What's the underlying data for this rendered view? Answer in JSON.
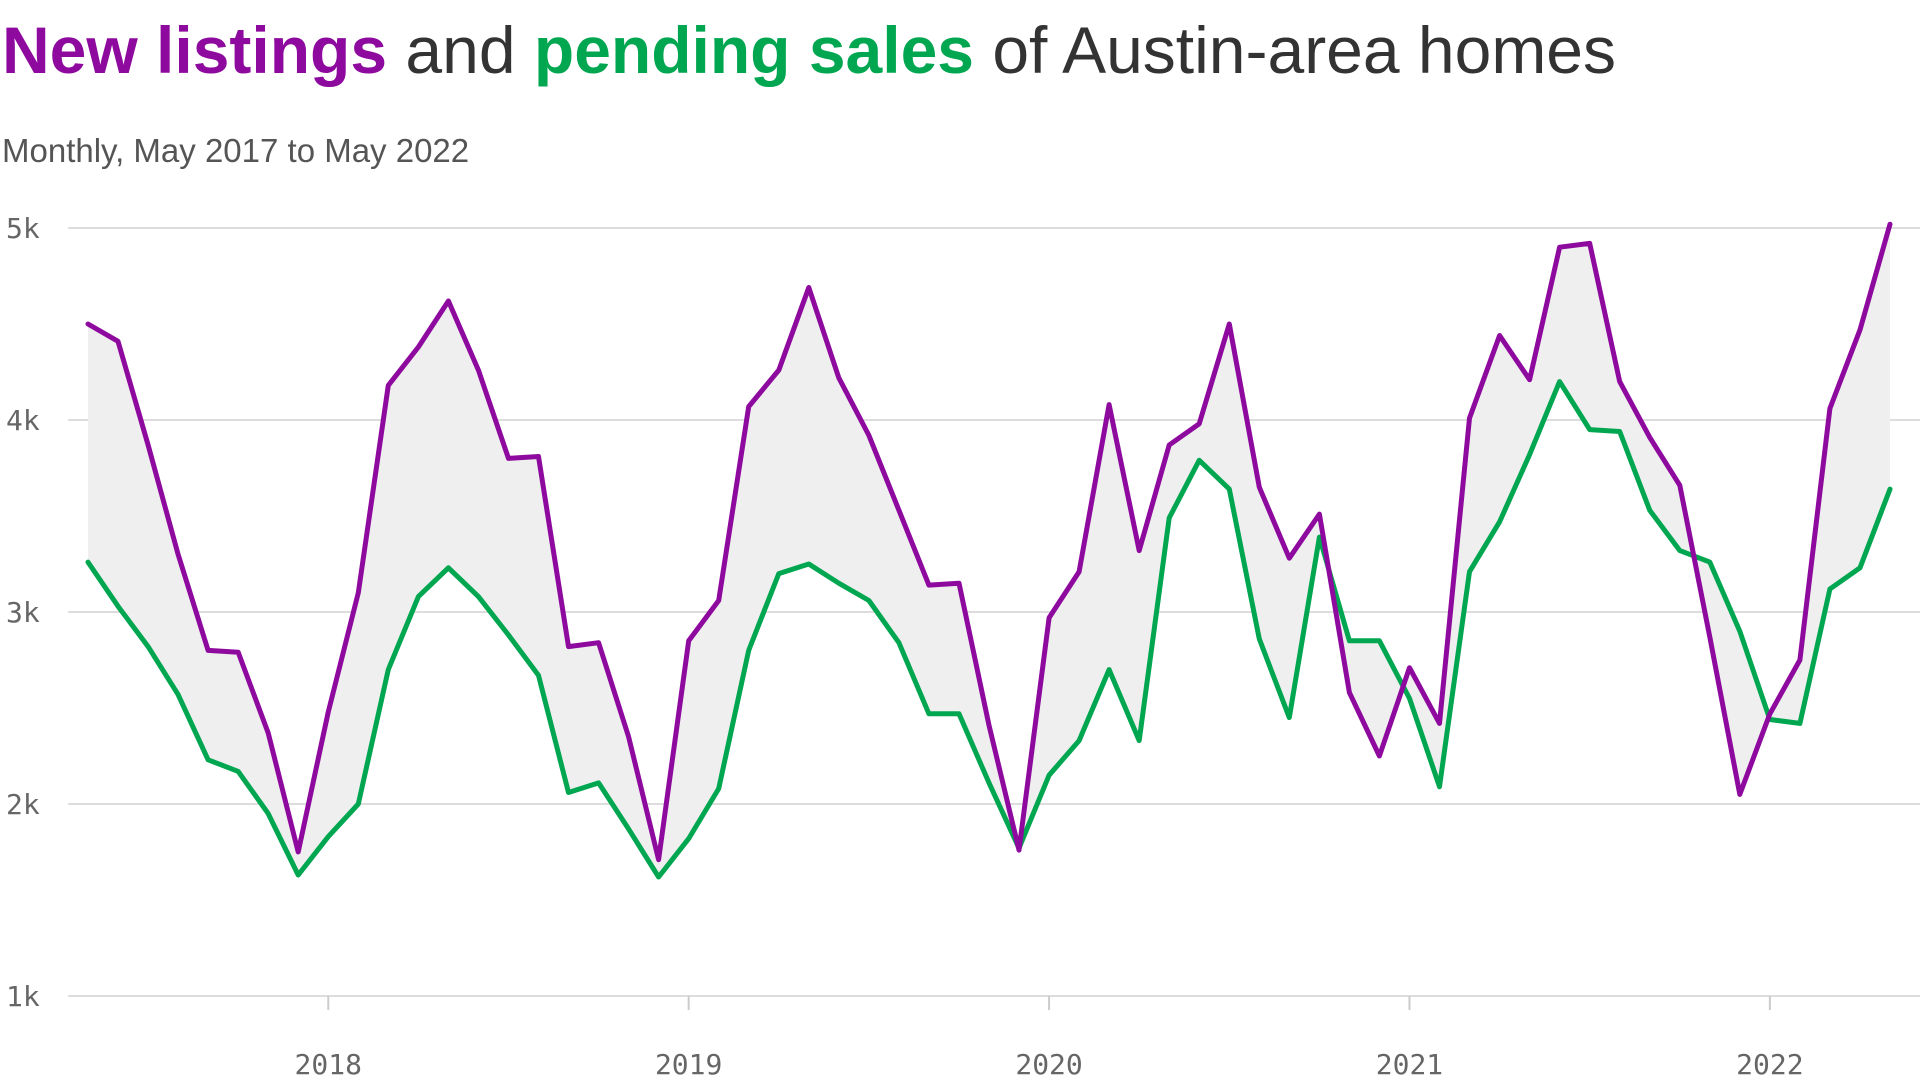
{
  "header": {
    "title_part1": "New listings",
    "title_part2": " and ",
    "title_part3": "pending sales",
    "title_part4": " of Austin-area homes",
    "subtitle": "Monthly, May 2017 to May 2022"
  },
  "colors": {
    "new_listings": "#8e0a9e",
    "pending_sales": "#00a650",
    "fill": "#efefef",
    "grid": "#dddddd",
    "text": "#333333"
  },
  "chart_data": {
    "type": "line",
    "title": "New listings and pending sales of Austin-area homes",
    "subtitle": "Monthly, May 2017 to May 2022",
    "xlabel": "",
    "ylabel": "",
    "x_start": "2017-05",
    "x_end": "2022-05",
    "x_ticks": [
      {
        "date": "2018-01",
        "label": "2018"
      },
      {
        "date": "2019-01",
        "label": "2019"
      },
      {
        "date": "2020-01",
        "label": "2020"
      },
      {
        "date": "2021-01",
        "label": "2021"
      },
      {
        "date": "2022-01",
        "label": "2022"
      }
    ],
    "ylim": [
      1000,
      5000
    ],
    "y_ticks": [
      {
        "value": 1000,
        "label": "1k"
      },
      {
        "value": 2000,
        "label": "2k"
      },
      {
        "value": 3000,
        "label": "3k"
      },
      {
        "value": 4000,
        "label": "4k"
      },
      {
        "value": 5000,
        "label": "5k"
      }
    ],
    "grid": "horizontal",
    "series": [
      {
        "name": "New listings",
        "values": [
          4500,
          4410,
          3870,
          3300,
          2800,
          2790,
          2370,
          1750,
          2480,
          3100,
          4180,
          4380,
          4620,
          4260,
          3800,
          3810,
          2820,
          2840,
          2350,
          1710,
          2850,
          3060,
          4070,
          4260,
          4690,
          4220,
          3920,
          3530,
          3140,
          3150,
          2410,
          1760,
          2970,
          3210,
          4080,
          3320,
          3870,
          3980,
          4500,
          3650,
          3280,
          3510,
          2580,
          2250,
          2710,
          2420,
          4010,
          4440,
          4210,
          4900,
          4920,
          4200,
          3910,
          3660,
          2870,
          2050,
          2470,
          2750,
          4060,
          4470,
          5020
        ]
      },
      {
        "name": "Pending sales",
        "values": [
          3260,
          3030,
          2820,
          2570,
          2230,
          2170,
          1950,
          1630,
          1830,
          2000,
          2700,
          3080,
          3230,
          3080,
          2880,
          2670,
          2060,
          2110,
          1870,
          1620,
          1820,
          2080,
          2800,
          3200,
          3250,
          3150,
          3060,
          2840,
          2470,
          2470,
          2110,
          1770,
          2150,
          2330,
          2700,
          2330,
          3490,
          3790,
          3640,
          2860,
          2450,
          3390,
          2850,
          2850,
          2550,
          2090,
          3210,
          3470,
          3820,
          4200,
          3950,
          3940,
          3530,
          3320,
          3260,
          2900,
          2440,
          2420,
          3120,
          3230,
          3640
        ]
      }
    ]
  }
}
